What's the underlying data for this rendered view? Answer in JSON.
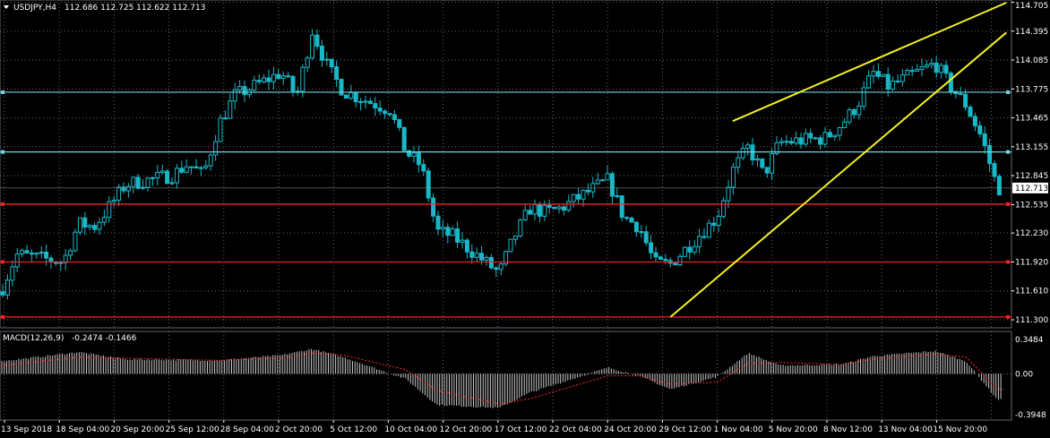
{
  "header": {
    "symbol_label": "USDJPY,H4",
    "ohlc": "112.686 112.725 112.622 112.713"
  },
  "macd_panel": {
    "label": "MACD(12,26,9)",
    "values": "-0.2474 -0.1466"
  },
  "colors": {
    "background": "#000000",
    "candles": "#19b8c8",
    "grid": "#5f6770",
    "support": "#ff2020",
    "level_lines": "#6fd4e0",
    "trendlines": "#f5f01e",
    "histogram": "#c8c8c8",
    "signal": "#ff2a2a",
    "price_badge_bg": "#ffffff"
  },
  "chart_data": {
    "type": "candlestick",
    "price_axis": {
      "ylim": [
        111.3,
        114.7
      ],
      "tick_labels": [
        "114.705",
        "114.395",
        "114.085",
        "113.775",
        "113.465",
        "113.155",
        "112.845",
        "112.535",
        "112.230",
        "111.920",
        "111.610",
        "111.300"
      ],
      "current_price": "112.713"
    },
    "time_axis": {
      "tick_labels": [
        "13 Sep 2018",
        "18 Sep 04:00",
        "20 Sep 20:00",
        "25 Sep 12:00",
        "28 Sep 04:00",
        "2 Oct 20:00",
        "5 Oct 12:00",
        "10 Oct 04:00",
        "12 Oct 20:00",
        "17 Oct 12:00",
        "22 Oct 04:00",
        "24 Oct 20:00",
        "29 Oct 12:00",
        "1 Nov 04:00",
        "5 Nov 20:00",
        "8 Nov 12:00",
        "13 Nov 04:00",
        "15 Nov 20:00"
      ]
    },
    "close_path": [
      {
        "date": "2018-09-13",
        "close": 111.6
      },
      {
        "date": "2018-09-14",
        "close": 112.0
      },
      {
        "date": "2018-09-17",
        "close": 111.92
      },
      {
        "date": "2018-09-18",
        "close": 112.33
      },
      {
        "date": "2018-09-19",
        "close": 112.3
      },
      {
        "date": "2018-09-20",
        "close": 112.52
      },
      {
        "date": "2018-09-21",
        "close": 112.75
      },
      {
        "date": "2018-09-24",
        "close": 112.85
      },
      {
        "date": "2018-09-25",
        "close": 112.97
      },
      {
        "date": "2018-09-26",
        "close": 112.85
      },
      {
        "date": "2018-09-27",
        "close": 113.4
      },
      {
        "date": "2018-09-28",
        "close": 113.7
      },
      {
        "date": "2018-10-01",
        "close": 113.95
      },
      {
        "date": "2018-10-02",
        "close": 113.7
      },
      {
        "date": "2018-10-03",
        "close": 114.4
      },
      {
        "date": "2018-10-04",
        "close": 114.0
      },
      {
        "date": "2018-10-05",
        "close": 113.75
      },
      {
        "date": "2018-10-08",
        "close": 113.55
      },
      {
        "date": "2018-10-09",
        "close": 113.1
      },
      {
        "date": "2018-10-10",
        "close": 112.95
      },
      {
        "date": "2018-10-11",
        "close": 112.25
      },
      {
        "date": "2018-10-12",
        "close": 112.2
      },
      {
        "date": "2018-10-15",
        "close": 111.8
      },
      {
        "date": "2018-10-16",
        "close": 112.2
      },
      {
        "date": "2018-10-17",
        "close": 112.5
      },
      {
        "date": "2018-10-18",
        "close": 112.45
      },
      {
        "date": "2018-10-19",
        "close": 112.5
      },
      {
        "date": "2018-10-22",
        "close": 112.8
      },
      {
        "date": "2018-10-23",
        "close": 112.4
      },
      {
        "date": "2018-10-24",
        "close": 112.3
      },
      {
        "date": "2018-10-25",
        "close": 111.9
      },
      {
        "date": "2018-10-26",
        "close": 111.9
      },
      {
        "date": "2018-10-29",
        "close": 112.4
      },
      {
        "date": "2018-10-30",
        "close": 112.9
      },
      {
        "date": "2018-10-31",
        "close": 113.15
      },
      {
        "date": "2018-11-01",
        "close": 112.85
      },
      {
        "date": "2018-11-02",
        "close": 113.2
      },
      {
        "date": "2018-11-05",
        "close": 113.25
      },
      {
        "date": "2018-11-06",
        "close": 113.4
      },
      {
        "date": "2018-11-07",
        "close": 113.6
      },
      {
        "date": "2018-11-08",
        "close": 113.95
      },
      {
        "date": "2018-11-09",
        "close": 113.8
      },
      {
        "date": "2018-11-12",
        "close": 114.05
      },
      {
        "date": "2018-11-13",
        "close": 113.8
      },
      {
        "date": "2018-11-14",
        "close": 113.6
      },
      {
        "date": "2018-11-15",
        "close": 113.25
      },
      {
        "date": "2018-11-16",
        "close": 112.71
      }
    ],
    "horizontal_levels": [
      {
        "kind": "resistance",
        "price": 113.74
      },
      {
        "kind": "resistance",
        "price": 113.1
      },
      {
        "kind": "support",
        "price": 112.54
      },
      {
        "kind": "support",
        "price": 111.92
      },
      {
        "kind": "support",
        "price": 111.33
      }
    ],
    "trendlines": [
      {
        "from": {
          "date": "2018-10-30",
          "price": 113.43
        },
        "to": {
          "date": "2018-11-16",
          "price": 114.7
        }
      },
      {
        "from": {
          "date": "2018-10-26",
          "price": 111.33
        },
        "to": {
          "date": "2018-11-16",
          "price": 114.38
        }
      }
    ],
    "macd": {
      "params": "12,26,9",
      "ylim": [
        -0.3948,
        0.3484
      ],
      "tick_labels": [
        "0.3484",
        "0.00",
        "-0.3948"
      ],
      "histogram_path": [
        {
          "date": "2018-09-13",
          "value": 0.12
        },
        {
          "date": "2018-09-18",
          "value": 0.21
        },
        {
          "date": "2018-09-21",
          "value": 0.14
        },
        {
          "date": "2018-09-27",
          "value": 0.13
        },
        {
          "date": "2018-10-01",
          "value": 0.18
        },
        {
          "date": "2018-10-03",
          "value": 0.24
        },
        {
          "date": "2018-10-05",
          "value": 0.16
        },
        {
          "date": "2018-10-09",
          "value": -0.05
        },
        {
          "date": "2018-10-11",
          "value": -0.3
        },
        {
          "date": "2018-10-15",
          "value": -0.33
        },
        {
          "date": "2018-10-17",
          "value": -0.18
        },
        {
          "date": "2018-10-22",
          "value": 0.06
        },
        {
          "date": "2018-10-24",
          "value": -0.02
        },
        {
          "date": "2018-10-26",
          "value": -0.15
        },
        {
          "date": "2018-10-29",
          "value": -0.03
        },
        {
          "date": "2018-10-31",
          "value": 0.2
        },
        {
          "date": "2018-11-02",
          "value": 0.08
        },
        {
          "date": "2018-11-06",
          "value": 0.09
        },
        {
          "date": "2018-11-08",
          "value": 0.17
        },
        {
          "date": "2018-11-12",
          "value": 0.22
        },
        {
          "date": "2018-11-14",
          "value": 0.12
        },
        {
          "date": "2018-11-16",
          "value": -0.25
        }
      ],
      "signal_path": [
        {
          "date": "2018-09-13",
          "value": 0.08
        },
        {
          "date": "2018-09-18",
          "value": 0.16
        },
        {
          "date": "2018-09-21",
          "value": 0.15
        },
        {
          "date": "2018-09-27",
          "value": 0.13
        },
        {
          "date": "2018-10-01",
          "value": 0.15
        },
        {
          "date": "2018-10-03",
          "value": 0.2
        },
        {
          "date": "2018-10-05",
          "value": 0.18
        },
        {
          "date": "2018-10-09",
          "value": 0.04
        },
        {
          "date": "2018-10-11",
          "value": -0.16
        },
        {
          "date": "2018-10-15",
          "value": -0.29
        },
        {
          "date": "2018-10-17",
          "value": -0.24
        },
        {
          "date": "2018-10-22",
          "value": -0.02
        },
        {
          "date": "2018-10-24",
          "value": -0.02
        },
        {
          "date": "2018-10-26",
          "value": -0.1
        },
        {
          "date": "2018-10-29",
          "value": -0.08
        },
        {
          "date": "2018-10-31",
          "value": 0.1
        },
        {
          "date": "2018-11-02",
          "value": 0.11
        },
        {
          "date": "2018-11-06",
          "value": 0.09
        },
        {
          "date": "2018-11-08",
          "value": 0.14
        },
        {
          "date": "2018-11-12",
          "value": 0.19
        },
        {
          "date": "2018-11-14",
          "value": 0.16
        },
        {
          "date": "2018-11-16",
          "value": -0.15
        }
      ]
    }
  }
}
